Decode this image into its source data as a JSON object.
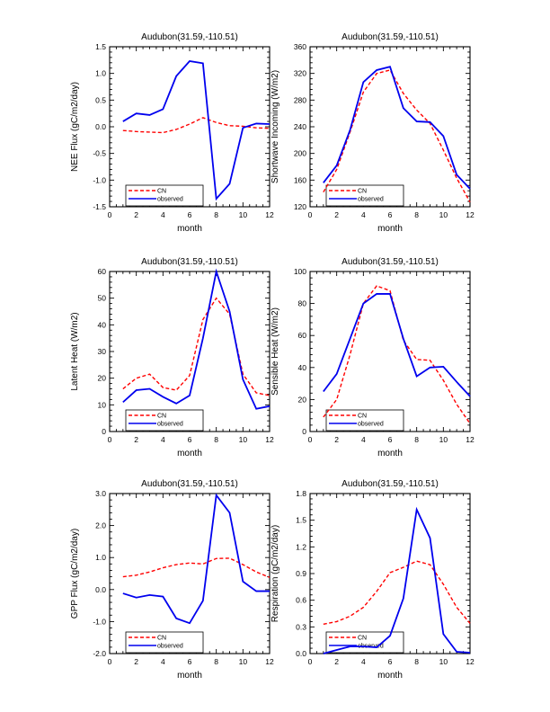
{
  "page": {
    "background": "#ffffff"
  },
  "colors": {
    "cn_line": "#ff0000",
    "observed_line": "#0000ee",
    "axis": "#000000"
  },
  "legend": {
    "entries": [
      {
        "label": "CN",
        "color": "#ff0000",
        "style": "dashed"
      },
      {
        "label": "observed",
        "color": "#0000ee",
        "style": "solid"
      }
    ],
    "position": "bottom-left"
  },
  "chart_data": [
    {
      "id": "nee-flux",
      "type": "line",
      "title": "Audubon(31.59,-110.51)",
      "xlabel": "month",
      "ylabel": "NEE Flux (gC/m2/day)",
      "xlim": [
        0,
        12
      ],
      "xticks": [
        0,
        2,
        4,
        6,
        8,
        10,
        12
      ],
      "ylim": [
        -1.5,
        1.5
      ],
      "ytick_step": 0.5,
      "ytick_decimals": 1,
      "grid": false,
      "legend_position": "bottom-left",
      "x": [
        1,
        2,
        3,
        4,
        5,
        6,
        7,
        8,
        9,
        10,
        11,
        12
      ],
      "series": [
        {
          "name": "CN",
          "color": "#ff0000",
          "style": "dashed",
          "values": [
            -0.07,
            -0.09,
            -0.1,
            -0.11,
            -0.05,
            0.05,
            0.17,
            0.08,
            0.02,
            0.01,
            -0.02,
            -0.03
          ]
        },
        {
          "name": "observed",
          "color": "#0000ee",
          "style": "solid",
          "values": [
            0.1,
            0.25,
            0.22,
            0.33,
            0.95,
            1.23,
            1.19,
            -1.35,
            -1.07,
            -0.02,
            0.06,
            0.05
          ]
        }
      ]
    },
    {
      "id": "shortwave-incoming",
      "type": "line",
      "title": "Audubon(31.59,-110.51)",
      "xlabel": "month",
      "ylabel": "Shortwave Incoming (W/m2)",
      "xlim": [
        0,
        12
      ],
      "xticks": [
        0,
        2,
        4,
        6,
        8,
        10,
        12
      ],
      "ylim": [
        120,
        360
      ],
      "ytick_step": 40,
      "ytick_decimals": 0,
      "grid": false,
      "legend_position": "bottom-left",
      "x": [
        1,
        2,
        3,
        4,
        5,
        6,
        7,
        8,
        9,
        10,
        11,
        12
      ],
      "series": [
        {
          "name": "CN",
          "color": "#ff0000",
          "style": "dashed",
          "values": [
            142,
            176,
            232,
            292,
            320,
            325,
            290,
            265,
            245,
            205,
            163,
            127
          ]
        },
        {
          "name": "observed",
          "color": "#0000ee",
          "style": "solid",
          "values": [
            156,
            182,
            235,
            307,
            325,
            330,
            268,
            248,
            247,
            226,
            168,
            147
          ]
        }
      ]
    },
    {
      "id": "latent-heat",
      "type": "line",
      "title": "Audubon(31.59,-110.51)",
      "xlabel": "month",
      "ylabel": "Latent Heat (W/m2)",
      "xlim": [
        0,
        12
      ],
      "xticks": [
        0,
        2,
        4,
        6,
        8,
        10,
        12
      ],
      "ylim": [
        0,
        60
      ],
      "ytick_step": 10,
      "ytick_decimals": 0,
      "grid": false,
      "legend_position": "bottom-left",
      "x": [
        1,
        2,
        3,
        4,
        5,
        6,
        7,
        8,
        9,
        10,
        11,
        12
      ],
      "series": [
        {
          "name": "CN",
          "color": "#ff0000",
          "style": "dashed",
          "values": [
            16,
            20,
            21.5,
            16.5,
            15.5,
            21,
            42,
            50,
            44,
            21.5,
            14.5,
            13.5
          ]
        },
        {
          "name": "observed",
          "color": "#0000ee",
          "style": "solid",
          "values": [
            11,
            15.5,
            16,
            13,
            10.5,
            13.5,
            35,
            60,
            45,
            19.5,
            8.5,
            9.5
          ]
        }
      ]
    },
    {
      "id": "sensible-heat",
      "type": "line",
      "title": "Audubon(31.59,-110.51)",
      "xlabel": "month",
      "ylabel": "Sensible Heat (W/m2)",
      "xlim": [
        0,
        12
      ],
      "xticks": [
        0,
        2,
        4,
        6,
        8,
        10,
        12
      ],
      "ylim": [
        0,
        100
      ],
      "ytick_step": 20,
      "ytick_decimals": 0,
      "grid": false,
      "legend_position": "bottom-left",
      "x": [
        1,
        2,
        3,
        4,
        5,
        6,
        7,
        8,
        9,
        10,
        11,
        12
      ],
      "series": [
        {
          "name": "CN",
          "color": "#ff0000",
          "style": "dashed",
          "values": [
            9,
            20,
            48,
            80,
            91,
            88,
            57,
            45,
            44.5,
            32,
            17,
            5
          ]
        },
        {
          "name": "observed",
          "color": "#0000ee",
          "style": "solid",
          "values": [
            25,
            36,
            58,
            80,
            86,
            86,
            58,
            34.5,
            40,
            40.5,
            31,
            22
          ]
        }
      ]
    },
    {
      "id": "gpp-flux",
      "type": "line",
      "title": "Audubon(31.59,-110.51)",
      "xlabel": "month",
      "ylabel": "GPP Flux (gC/m2/day)",
      "xlim": [
        0,
        12
      ],
      "xticks": [
        0,
        2,
        4,
        6,
        8,
        10,
        12
      ],
      "ylim": [
        -2.0,
        3.0
      ],
      "ytick_step": 1.0,
      "ytick_decimals": 1,
      "grid": false,
      "legend_position": "bottom-left",
      "x": [
        1,
        2,
        3,
        4,
        5,
        6,
        7,
        8,
        9,
        10,
        11,
        12
      ],
      "series": [
        {
          "name": "CN",
          "color": "#ff0000",
          "style": "dashed",
          "values": [
            0.4,
            0.45,
            0.55,
            0.68,
            0.78,
            0.83,
            0.8,
            0.97,
            0.98,
            0.78,
            0.55,
            0.38
          ]
        },
        {
          "name": "observed",
          "color": "#0000ee",
          "style": "solid",
          "values": [
            -0.12,
            -0.25,
            -0.17,
            -0.22,
            -0.9,
            -1.05,
            -0.35,
            2.95,
            2.4,
            0.25,
            -0.05,
            -0.05
          ]
        }
      ]
    },
    {
      "id": "respiration",
      "type": "line",
      "title": "Audubon(31.59,-110.51)",
      "xlabel": "month",
      "ylabel": "Respiration (gC/m2/day)",
      "xlim": [
        0,
        12
      ],
      "xticks": [
        0,
        2,
        4,
        6,
        8,
        10,
        12
      ],
      "ylim": [
        0.0,
        1.8
      ],
      "ytick_step": 0.3,
      "ytick_decimals": 1,
      "grid": false,
      "legend_position": "bottom-left",
      "x": [
        1,
        2,
        3,
        4,
        5,
        6,
        7,
        8,
        9,
        10,
        11,
        12
      ],
      "series": [
        {
          "name": "CN",
          "color": "#ff0000",
          "style": "dashed",
          "values": [
            0.33,
            0.36,
            0.42,
            0.52,
            0.7,
            0.91,
            0.97,
            1.04,
            1.0,
            0.78,
            0.52,
            0.34
          ]
        },
        {
          "name": "observed",
          "color": "#0000ee",
          "style": "solid",
          "values": [
            0.0,
            0.04,
            0.08,
            0.08,
            0.07,
            0.2,
            0.62,
            1.62,
            1.3,
            0.22,
            0.02,
            0.01
          ]
        }
      ]
    }
  ]
}
